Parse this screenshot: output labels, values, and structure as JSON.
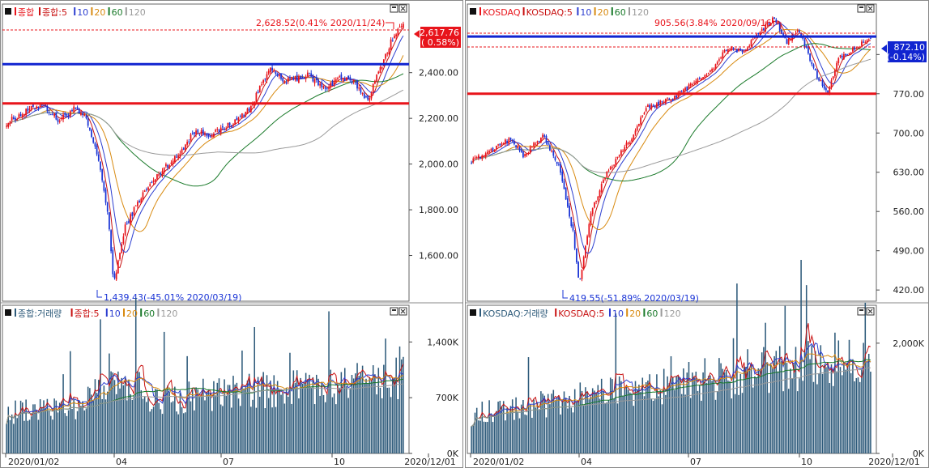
{
  "colors": {
    "up": "#e8141b",
    "down": "#1a34d6",
    "ma5": "#c81010",
    "ma10": "#2c3ed0",
    "ma20": "#d88a10",
    "ma60": "#1a7a2a",
    "ma120": "#9a9a9a",
    "volume": "#2d5a7a",
    "blue_line": "#1024d0",
    "red_line": "#e8141b"
  },
  "icons": [
    "panel-maximize-icon",
    "panel-close-icon",
    "price-marker-arrow-icon"
  ],
  "left": {
    "price_legend": {
      "main": "종합",
      "ma": "종합:5",
      "p10": "10",
      "p20": "20",
      "p60": "60",
      "p120": "120"
    },
    "high_label": "2,628.52(0.41% 2020/11/24)",
    "low_label": "1,439.43(-45.01% 2020/03/19)",
    "current_price": "2,617.76",
    "current_change": "( 0.58%)",
    "price_axis": [
      "2,400.00",
      "2,200.00",
      "2,000.00",
      "1,800.00",
      "1,600.00"
    ],
    "volume_legend": {
      "main": "종합:거래량",
      "ma": "종합:5",
      "p10": "10",
      "p20": "20",
      "p60": "60",
      "p120": "120"
    },
    "volume_axis": [
      "1,400K",
      "700K",
      "0K"
    ],
    "date_axis": [
      "2020/01/02",
      "04",
      "07",
      "10",
      "2020/12/01"
    ]
  },
  "right": {
    "price_legend": {
      "main": "KOSDAQ",
      "ma": "KOSDAQ:5",
      "p10": "10",
      "p20": "20",
      "p60": "60",
      "p120": "120"
    },
    "high_label": "905.56(3.84% 2020/09/16)",
    "low_label": "419.55(-51.89% 2020/03/19)",
    "current_price": "872.10",
    "current_change": "(-0.14%)",
    "price_axis": [
      "840.00",
      "770.00",
      "700.00",
      "630.00",
      "560.00",
      "490.00",
      "420.00"
    ],
    "volume_legend": {
      "main": "KOSDAQ:거래량",
      "ma": "KOSDAQ:5",
      "p10": "10",
      "p20": "20",
      "p60": "60",
      "p120": "120"
    },
    "volume_axis": [
      "2,000K",
      "0K"
    ],
    "date_axis": [
      "2020/01/02",
      "04",
      "07",
      "10",
      "2020/12/01"
    ]
  },
  "chart_data": [
    {
      "type": "candlestick",
      "market": "종합",
      "key_points": [
        {
          "date": "2020/01/02",
          "close": 2175
        },
        {
          "date": "2020/01/22",
          "close": 2265
        },
        {
          "date": "2020/02/18",
          "close": 2210
        },
        {
          "date": "2020/03/19",
          "close": 1439.43
        },
        {
          "date": "2020/04/29",
          "close": 1950
        },
        {
          "date": "2020/06/08",
          "close": 2190
        },
        {
          "date": "2020/08/13",
          "close": 2437
        },
        {
          "date": "2020/09/15",
          "close": 2440
        },
        {
          "date": "2020/10/30",
          "close": 2267
        },
        {
          "date": "2020/11/24",
          "close": 2628.52
        },
        {
          "date": "2020/12/01",
          "close": 2617.76
        }
      ],
      "horizontal_lines": [
        2437,
        2265
      ],
      "ylim": [
        1400,
        2700
      ]
    },
    {
      "type": "candlestick",
      "market": "KOSDAQ",
      "key_points": [
        {
          "date": "2020/01/02",
          "close": 670
        },
        {
          "date": "2020/02/18",
          "close": 695
        },
        {
          "date": "2020/03/19",
          "close": 419.55
        },
        {
          "date": "2020/04/29",
          "close": 640
        },
        {
          "date": "2020/06/08",
          "close": 760
        },
        {
          "date": "2020/09/16",
          "close": 905.56
        },
        {
          "date": "2020/10/30",
          "close": 772
        },
        {
          "date": "2020/12/01",
          "close": 872.1
        }
      ],
      "horizontal_lines": [
        872.1,
        770
      ],
      "ylim": [
        400,
        930
      ]
    }
  ]
}
